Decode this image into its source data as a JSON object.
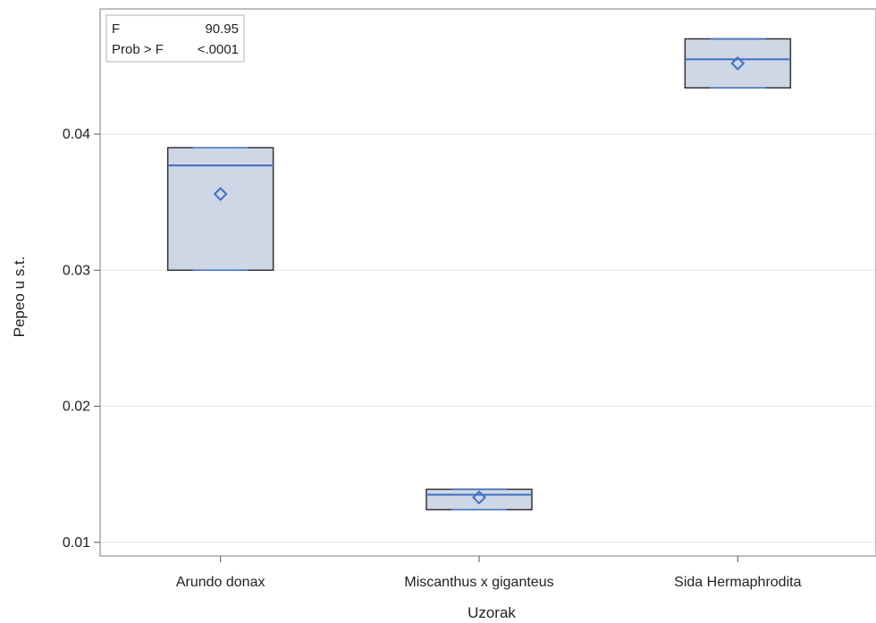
{
  "chart_data": {
    "type": "box",
    "xlabel": "Uzorak",
    "ylabel": "Pepeo u s.t.",
    "categories": [
      "Arundo donax",
      "Miscanthus x giganteus",
      "Sida Hermaphrodita"
    ],
    "boxes": [
      {
        "category": "Arundo donax",
        "q1": 0.03,
        "median": 0.0377,
        "q3": 0.039,
        "mean": 0.0356
      },
      {
        "category": "Miscanthus x giganteus",
        "q1": 0.0124,
        "median": 0.0135,
        "q3": 0.0139,
        "mean": 0.0133
      },
      {
        "category": "Sida Hermaphrodita",
        "q1": 0.0434,
        "median": 0.0455,
        "q3": 0.047,
        "mean": 0.0452
      }
    ],
    "yticks": [
      0.01,
      0.02,
      0.03,
      0.04
    ],
    "ytick_labels": [
      "0.01",
      "0.02",
      "0.03",
      "0.04"
    ],
    "ylim": [
      0.009,
      0.0492
    ],
    "grid": true,
    "stats_box": {
      "placement": "top-left",
      "rows": [
        {
          "label": "F",
          "value": "90.95"
        },
        {
          "label": "Prob > F",
          "value": "<.0001"
        }
      ]
    },
    "colors": {
      "box_fill": "#cdd7e6",
      "box_stroke": "#333333",
      "accent": "#3f6ec2",
      "grid": "#e6e6e6",
      "frame": "#a8a8a8"
    }
  }
}
